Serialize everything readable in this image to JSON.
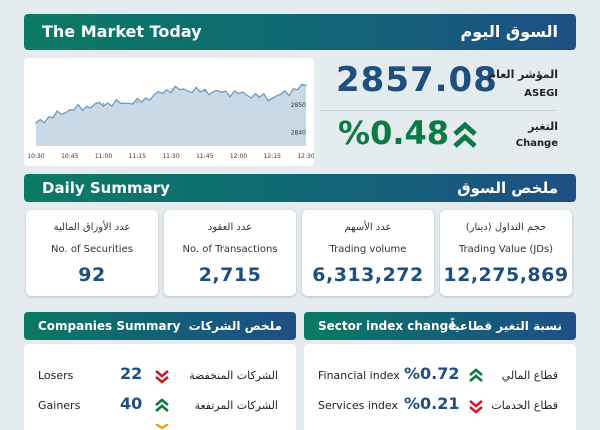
{
  "header": {
    "title_en": "The Market Today",
    "title_ar": "السوق اليوم"
  },
  "index": {
    "label_ar": "المؤشر العام",
    "label_en": "ASEGI",
    "value": "2857.08"
  },
  "change": {
    "label_ar": "التغير",
    "label_en": "Change",
    "value": "%0.48",
    "direction": "up",
    "color": "#0b7a45"
  },
  "chart_data": {
    "type": "area",
    "x": [
      "10:30",
      "10:45",
      "11:00",
      "11:15",
      "11:30",
      "11:45",
      "12:00",
      "12:15",
      "12:30"
    ],
    "x_ticks": [
      "10:30",
      "10:45",
      "11:00",
      "11:15",
      "11:30",
      "11:45",
      "12:00",
      "12:15",
      "12:30"
    ],
    "y_ticks": [
      "2850",
      "2840"
    ],
    "ylim": [
      2835,
      2862
    ],
    "series": [
      {
        "values": [
          2843.5,
          2848.2,
          2850.4,
          2851.0,
          2855.8,
          2855.0,
          2854.2,
          2852.5,
          2857.1
        ]
      }
    ],
    "area_color": "#c9d9e6",
    "line_color": "#6f9cc0",
    "grid": false
  },
  "daily": {
    "title_en": "Daily Summary",
    "title_ar": "ملخص السوق",
    "cards": [
      {
        "ar": "عدد الأوراق المالية",
        "en": "No. of Securities",
        "value": "92"
      },
      {
        "ar": "عدد العقود",
        "en": "No. of Transactions",
        "value": "2,715"
      },
      {
        "ar": "عدد الأسهم",
        "en": "Trading volume",
        "value": "6,313,272"
      },
      {
        "ar": "حجم التداول (دينار)",
        "en": "Trading Value (JDs)",
        "value": "12,275,869"
      }
    ]
  },
  "companies": {
    "title_en": "Companies Summary",
    "title_ar": "ملخص الشركات",
    "rows": [
      {
        "en": "Losers",
        "value": "22",
        "ar": "الشركات المنخفضة",
        "direction": "down"
      },
      {
        "en": "Gainers",
        "value": "40",
        "ar": "الشركات المرتفعة",
        "direction": "up"
      }
    ]
  },
  "sectors": {
    "title_en": "Sector index change",
    "title_ar": "نسبة التغير قطاعياً",
    "rows": [
      {
        "en": "Financial index",
        "value": "%0.72",
        "ar": "قطاع المالي",
        "direction": "up"
      },
      {
        "en": "Services index",
        "value": "%0.21",
        "ar": "قطاع الخدمات",
        "direction": "down"
      }
    ]
  },
  "colors": {
    "up": "#0b7a45",
    "down": "#c81e2a",
    "neutral": "#e0a820",
    "value": "#1e4f7d"
  }
}
